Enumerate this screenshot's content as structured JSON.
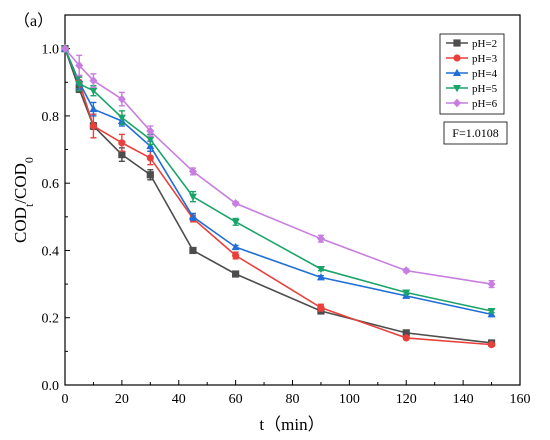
{
  "chart_data": {
    "type": "line",
    "panel_label": "（a）",
    "xlabel": "t（min）",
    "ylabel": {
      "base": "COD",
      "sub1": "t",
      "mid": "/COD",
      "sub2": "0"
    },
    "xlim": [
      0,
      160
    ],
    "ylim": [
      0.0,
      1.1
    ],
    "xticks": [
      0,
      20,
      40,
      60,
      80,
      100,
      120,
      140,
      160
    ],
    "yticks": [
      0.0,
      0.2,
      0.4,
      0.6,
      0.8,
      1.0
    ],
    "xtick_labels": [
      "0",
      "20",
      "40",
      "60",
      "80",
      "100",
      "120",
      "140",
      "160"
    ],
    "ytick_labels": [
      "0.0",
      "0.2",
      "0.4",
      "0.6",
      "0.8",
      "1.0"
    ],
    "grid": false,
    "legend_position": "top-right",
    "annotation": "F=1.0108",
    "x": [
      0,
      5,
      10,
      20,
      30,
      45,
      60,
      90,
      120,
      150
    ],
    "series": [
      {
        "name": "pH=2",
        "color": "#4d4d4d",
        "marker": "square",
        "values": [
          1.0,
          0.88,
          0.77,
          0.685,
          0.625,
          0.4,
          0.33,
          0.22,
          0.155,
          0.125
        ],
        "errors": [
          0,
          0.01,
          0.01,
          0.02,
          0.015,
          0.005,
          0.005,
          0.005,
          0.005,
          0.005
        ]
      },
      {
        "name": "pH=3",
        "color": "#e8413b",
        "marker": "circle",
        "values": [
          1.0,
          0.9,
          0.77,
          0.72,
          0.675,
          0.495,
          0.385,
          0.23,
          0.14,
          0.12
        ],
        "errors": [
          0,
          0.02,
          0.035,
          0.025,
          0.02,
          0.01,
          0.01,
          0.01,
          0.005,
          0.005
        ]
      },
      {
        "name": "pH=4",
        "color": "#1f6fd6",
        "marker": "triangle-up",
        "values": [
          1.0,
          0.9,
          0.82,
          0.785,
          0.71,
          0.5,
          0.41,
          0.32,
          0.265,
          0.21
        ],
        "errors": [
          0,
          0.02,
          0.02,
          0.015,
          0.015,
          0.01,
          0.005,
          0.005,
          0.005,
          0.005
        ]
      },
      {
        "name": "pH=5",
        "color": "#1ba46a",
        "marker": "triangle-down",
        "values": [
          1.0,
          0.895,
          0.875,
          0.795,
          0.73,
          0.56,
          0.485,
          0.345,
          0.275,
          0.22
        ],
        "errors": [
          0,
          0.02,
          0.015,
          0.02,
          0.015,
          0.015,
          0.01,
          0.005,
          0.005,
          0.005
        ]
      },
      {
        "name": "pH=6",
        "color": "#c77ee0",
        "marker": "diamond",
        "values": [
          1.0,
          0.95,
          0.905,
          0.85,
          0.755,
          0.635,
          0.54,
          0.435,
          0.34,
          0.3
        ],
        "errors": [
          0,
          0.03,
          0.02,
          0.02,
          0.015,
          0.01,
          0.005,
          0.01,
          0.005,
          0.01
        ]
      }
    ]
  }
}
